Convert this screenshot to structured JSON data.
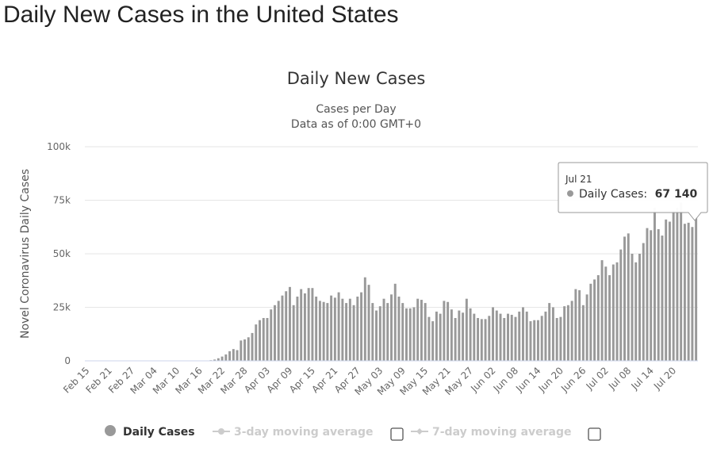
{
  "page": {
    "heading": "Daily New Cases in the United States"
  },
  "chart_data": {
    "type": "bar",
    "title": "Daily New Cases",
    "subtitle_lines": [
      "Cases per Day",
      "Data as of 0:00 GMT+0"
    ],
    "ylabel": "Novel Coronavirus Daily Cases",
    "xlabel": "",
    "ylim": [
      0,
      100000
    ],
    "y_ticks": [
      0,
      25000,
      50000,
      75000,
      100000
    ],
    "y_tick_labels": [
      "0",
      "25k",
      "50k",
      "75k",
      "100k"
    ],
    "grid": true,
    "x_tick_labels": [
      "Feb 15",
      "Feb 21",
      "Feb 27",
      "Mar 04",
      "Mar 10",
      "Mar 16",
      "Mar 22",
      "Mar 28",
      "Apr 03",
      "Apr 09",
      "Apr 15",
      "Apr 21",
      "Apr 27",
      "May 03",
      "May 09",
      "May 15",
      "May 21",
      "May 27",
      "Jun 02",
      "Jun 08",
      "Jun 14",
      "Jun 20",
      "Jun 26",
      "Jul 02",
      "Jul 08",
      "Jul 14",
      "Jul 20"
    ],
    "start_date": "Feb 15",
    "series": [
      {
        "name": "Daily Cases",
        "color": "#999999",
        "values": [
          0,
          0,
          0,
          0,
          0,
          0,
          0,
          0,
          0,
          0,
          0,
          0,
          0,
          0,
          0,
          0,
          0,
          0,
          0,
          0,
          0,
          0,
          0,
          0,
          0,
          0,
          0,
          0,
          0,
          0,
          0,
          0,
          100,
          300,
          600,
          1200,
          2000,
          3000,
          4500,
          5500,
          5000,
          9500,
          10000,
          11000,
          13000,
          17000,
          19000,
          20000,
          20000,
          24000,
          26000,
          28000,
          30500,
          32500,
          34500,
          26000,
          30000,
          33500,
          31500,
          34000,
          34000,
          30000,
          28000,
          27500,
          27000,
          30500,
          29500,
          32000,
          29000,
          27000,
          29000,
          26000,
          30000,
          32000,
          39000,
          35500,
          27000,
          23500,
          25500,
          29000,
          27000,
          31000,
          36000,
          30000,
          27000,
          24500,
          24500,
          25000,
          29000,
          28500,
          27000,
          20500,
          18500,
          23000,
          22000,
          28000,
          27500,
          24000,
          20000,
          23500,
          22500,
          29000,
          24500,
          22000,
          20000,
          19500,
          19500,
          21000,
          25000,
          23500,
          22000,
          20000,
          22000,
          21500,
          20500,
          23000,
          25000,
          23000,
          18500,
          19000,
          19000,
          21000,
          23000,
          27000,
          25000,
          20000,
          20500,
          25500,
          26000,
          28000,
          33500,
          33000,
          26000,
          31000,
          36000,
          38000,
          40000,
          47000,
          44000,
          40000,
          45000,
          46000,
          52000,
          58000,
          59500,
          50000,
          46000,
          50000,
          55000,
          62000,
          61000,
          71500,
          61500,
          58500,
          66000,
          65000,
          70000,
          71500,
          74000,
          64000,
          64500,
          62500,
          67140
        ]
      },
      {
        "name": "3-day moving average",
        "color": "#cccccc",
        "visible": false
      },
      {
        "name": "7-day moving average",
        "color": "#cccccc",
        "visible": false
      }
    ],
    "legend": {
      "position": "bottom-center"
    },
    "tooltip": {
      "date": "Jul 21",
      "label": "Daily Cases:",
      "value": "67 140"
    }
  }
}
